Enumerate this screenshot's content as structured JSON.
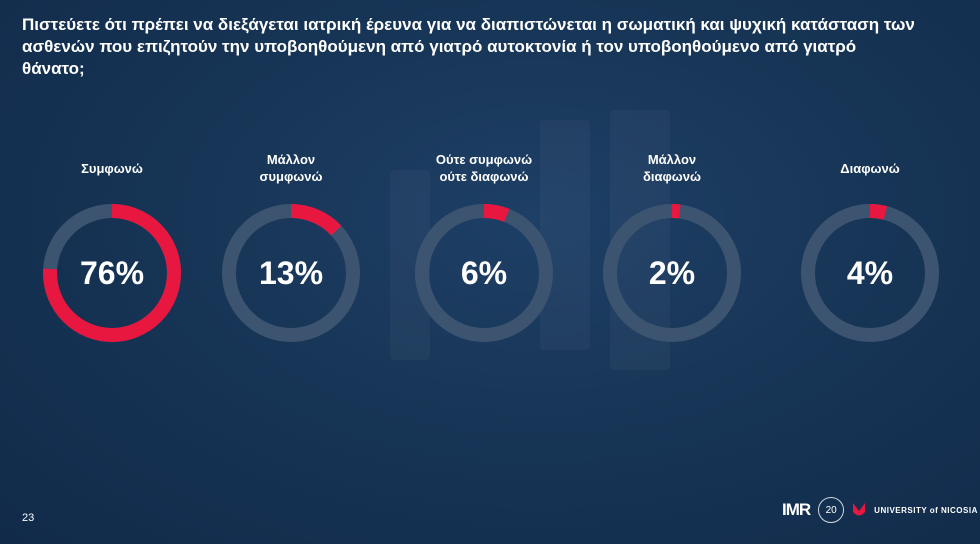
{
  "question": "Πιστεύετε ότι πρέπει να διεξάγεται ιατρική έρευνα για να διαπιστώνεται η σωματική και ψυχική κατάσταση των ασθενών που επιζητούν την υποβοηθούμενη από γιατρό αυτοκτονία ή τον υποβοηθούμενο από γιατρό θάνατο;",
  "chart_data": {
    "type": "donut",
    "categories": [
      "Συμφωνώ",
      "Μάλλον\nσυμφωνώ",
      "Ούτε συμφωνώ\nούτε διαφωνώ",
      "Μάλλον\nδιαφωνώ",
      "Διαφωνώ"
    ],
    "values": [
      76,
      13,
      6,
      2,
      4
    ],
    "value_labels": [
      "76%",
      "13%",
      "6%",
      "2%",
      "4%"
    ],
    "unit": "%",
    "colors": {
      "filled": "#e8173f",
      "track": "#3d5470"
    }
  },
  "footer": {
    "page_number": "23",
    "logo_imr": "IMR",
    "logo_anniversary": "20",
    "logo_university": "UNIVERSITY of NICOSIA"
  }
}
